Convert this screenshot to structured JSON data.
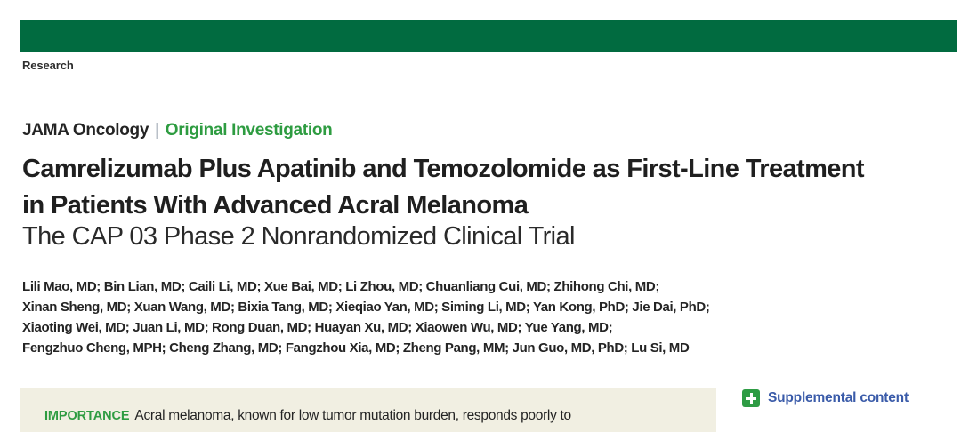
{
  "header": {
    "section_label": "Research"
  },
  "masthead": {
    "journal": "JAMA Oncology",
    "separator": "|",
    "article_type": "Original Investigation"
  },
  "article": {
    "title_line1": "Camrelizumab Plus Apatinib and Temozolomide as First-Line Treatment",
    "title_line2": "in Patients With Advanced Acral Melanoma",
    "subtitle": "The CAP 03 Phase 2 Nonrandomized Clinical Trial",
    "author_lines": [
      "Lili Mao, MD; Bin Lian, MD; Caili Li, MD; Xue Bai, MD; Li Zhou, MD; Chuanliang Cui, MD; Zhihong Chi, MD;",
      "Xinan Sheng, MD; Xuan Wang, MD; Bixia Tang, MD; Xieqiao Yan, MD; Siming Li, MD; Yan Kong, PhD; Jie Dai, PhD;",
      "Xiaoting Wei, MD; Juan Li, MD; Rong Duan, MD; Huayan Xu, MD; Xiaowen Wu, MD; Yue Yang, MD;",
      "Fengzhuo Cheng, MPH; Cheng Zhang, MD; Fangzhou Xia, MD; Zheng Pang, MM; Jun Guo, MD, PhD; Lu Si, MD"
    ]
  },
  "abstract": {
    "importance_label": "IMPORTANCE",
    "importance_text": "Acral melanoma, known for low tumor mutation burden, responds poorly to"
  },
  "supplemental": {
    "icon": "plus-icon",
    "label": "Supplemental content"
  },
  "colors": {
    "brand_bar_green": "#016B40",
    "accent_green": "#2E9C41",
    "plus_icon_green": "#2E9C44",
    "link_blue": "#3A5BA9",
    "abstract_background": "#F1EFE2",
    "text_dark": "#1F1F1F"
  }
}
